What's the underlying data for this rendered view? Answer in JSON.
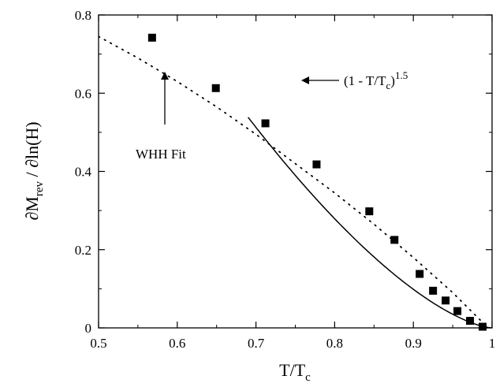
{
  "chart_data": {
    "type": "scatter",
    "xlabel": {
      "main": "T/T",
      "sub": "c"
    },
    "ylabel": {
      "part1": "∂M",
      "sub": "rev",
      "part2": " / ∂ln(H)"
    },
    "xlim": [
      0.5,
      1.0
    ],
    "ylim": [
      0,
      0.8
    ],
    "x_ticks": [
      0.5,
      0.6,
      0.7,
      0.8,
      0.9,
      1.0
    ],
    "x_tick_labels": [
      "0.5",
      "0.6",
      "0.7",
      "0.8",
      "0.9",
      "1"
    ],
    "y_ticks": [
      0,
      0.2,
      0.4,
      0.6,
      0.8
    ],
    "y_tick_labels": [
      "0",
      "0.2",
      "0.4",
      "0.6",
      "0.8"
    ],
    "grid": false,
    "series": [
      {
        "kind": "points",
        "marker": "square",
        "x": [
          0.568,
          0.649,
          0.712,
          0.777,
          0.844,
          0.876,
          0.908,
          0.925,
          0.941,
          0.956,
          0.972,
          0.988
        ],
        "y": [
          0.742,
          0.613,
          0.523,
          0.418,
          0.298,
          0.225,
          0.138,
          0.095,
          0.07,
          0.043,
          0.018,
          0.003
        ]
      },
      {
        "kind": "line",
        "style": "solid",
        "formula": "A*(1 - T/Tc)^1.5",
        "amplitude": 3.12
      },
      {
        "kind": "line",
        "style": "dotted",
        "x": [
          0.5,
          0.55,
          0.6,
          0.65,
          0.7,
          0.75,
          0.8,
          0.85,
          0.9,
          0.95,
          0.99
        ],
        "y": [
          0.745,
          0.69,
          0.63,
          0.565,
          0.495,
          0.42,
          0.345,
          0.265,
          0.18,
          0.09,
          0.01
        ]
      }
    ],
    "annotations": {
      "power_law": {
        "text": "(1 - T/T",
        "sub": "c",
        "after": ")",
        "sup": "1.5"
      },
      "whh": {
        "text": "WHH Fit"
      }
    }
  }
}
